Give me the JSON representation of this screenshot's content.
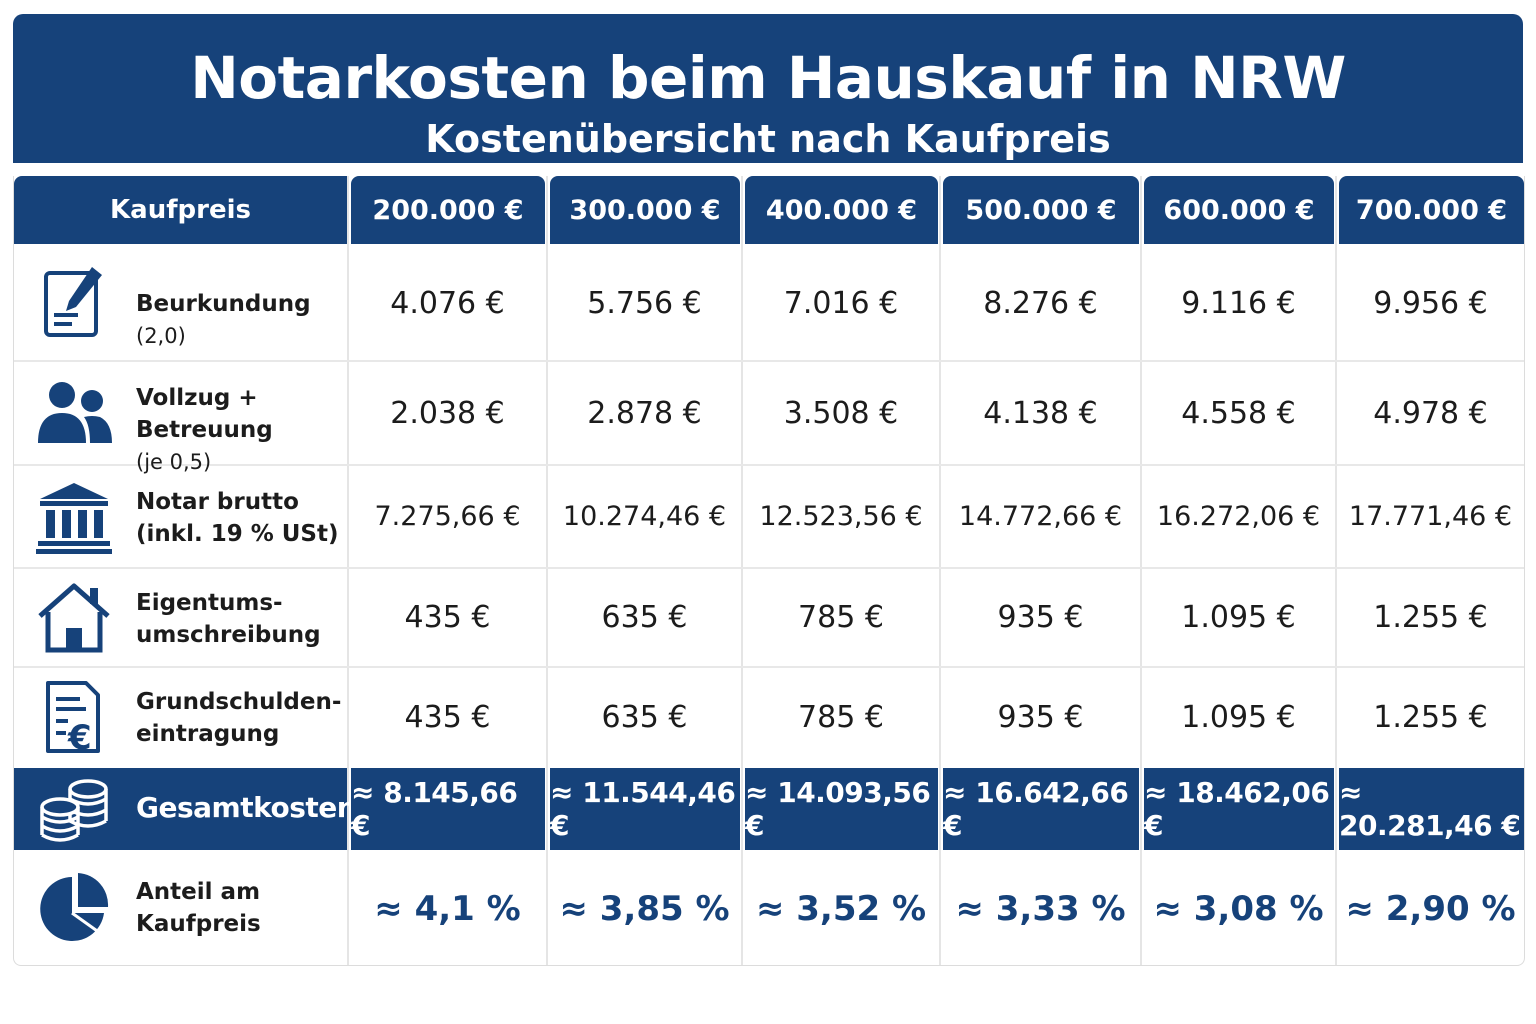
{
  "header": {
    "title": "Notarkosten beim Hauskauf in NRW",
    "subtitle": "Kostenübersicht nach Kaufpreis"
  },
  "colors": {
    "accent": "#16427a",
    "text": "#1c1c1c",
    "grid": "#e5e5e5"
  },
  "chart_data": {
    "type": "table",
    "title": "Notarkosten beim Hauskauf in NRW",
    "subtitle": "Kostenübersicht nach Kaufpreis",
    "corner_header": "Kaufpreis",
    "columns": [
      "200.000 €",
      "300.000 €",
      "400.000 €",
      "500.000 €",
      "600.000 €",
      "700.000 €"
    ],
    "rows": [
      {
        "label": "Beurkundung",
        "label_note": "(2,0)",
        "icon": "document-pen-icon",
        "values": [
          "4.076 €",
          "5.756 €",
          "7.016 €",
          "8.276 €",
          "9.116 €",
          "9.956 €"
        ]
      },
      {
        "label": "Vollzug + Betreuung",
        "label_line2": "(je 0,5)",
        "icon": "people-icon",
        "values": [
          "2.038 €",
          "2.878 €",
          "3.508 €",
          "4.138 €",
          "4.558 €",
          "4.978 €"
        ]
      },
      {
        "label": "Notar brutto",
        "label_line2": "(inkl. 19 % USt)",
        "icon": "bank-building-icon",
        "values": [
          "7.275,66 €",
          "10.274,46 €",
          "12.523,56 €",
          "14.772,66 €",
          "16.272,06 €",
          "17.771,46 €"
        ]
      },
      {
        "label": "Eigentums-",
        "label_line2": "umschreibung",
        "icon": "house-icon",
        "values": [
          "435 €",
          "635 €",
          "785 €",
          "935 €",
          "1.095 €",
          "1.255 €"
        ]
      },
      {
        "label": "Grundschulden-",
        "label_line2": "eintragung",
        "icon": "euro-document-icon",
        "values": [
          "435 €",
          "635 €",
          "785 €",
          "935 €",
          "1.095 €",
          "1.255 €"
        ]
      }
    ],
    "total_row": {
      "label": "Gesamtkosten",
      "icon": "coins-stack-icon",
      "values": [
        "≈ 8.145,66 €",
        "≈ 11.544,46 €",
        "≈ 14.093,56 €",
        "≈ 16.642,66 €",
        "≈ 18.462,06 €",
        "≈ 20.281,46 €"
      ]
    },
    "share_row": {
      "label": "Anteil am",
      "label_line2": "Kaufpreis",
      "icon": "pie-chart-icon",
      "values": [
        "≈ 4,1 %",
        "≈ 3,85 %",
        "≈ 3,52 %",
        "≈ 3,33 %",
        "≈ 3,08 %",
        "≈ 2,90 %"
      ]
    }
  }
}
